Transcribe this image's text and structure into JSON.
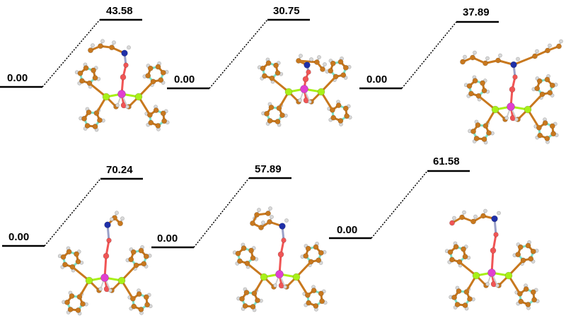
{
  "panels": [
    {
      "start_label": "0.00",
      "ts_label": "43.58",
      "start_y": 0.0,
      "ts_y": 43.58,
      "molecule": {
        "kind": "cyclohexyl-amine-chain"
      }
    },
    {
      "start_label": "0.00",
      "ts_label": "30.75",
      "start_y": 0.0,
      "ts_y": 30.75,
      "molecule": {
        "kind": "compact-amine"
      }
    },
    {
      "start_label": "0.00",
      "ts_label": "37.89",
      "start_y": 0.0,
      "ts_y": 37.89,
      "molecule": {
        "kind": "polyamine-chain"
      }
    },
    {
      "start_label": "0.00",
      "ts_label": "70.24",
      "start_y": 0.0,
      "ts_y": 70.24,
      "molecule": {
        "kind": "methylamine-chain"
      }
    },
    {
      "start_label": "0.00",
      "ts_label": "57.89",
      "start_y": 0.0,
      "ts_y": 57.89,
      "molecule": {
        "kind": "cyclic-amine"
      }
    },
    {
      "start_label": "0.00",
      "ts_label": "61.58",
      "start_y": 0.0,
      "ts_y": 61.58,
      "molecule": {
        "kind": "hydroxy-amine-chain"
      }
    }
  ],
  "colors": {
    "carbon": "#c8781e",
    "hydrogen": "#d8d8d8",
    "nitrogen": "#1f2fa8",
    "oxygen": "#f05555",
    "metal": "#e040d0",
    "phosphorus": "#a8f018",
    "aromatic": "#7fe0c8",
    "level": "#000000"
  }
}
